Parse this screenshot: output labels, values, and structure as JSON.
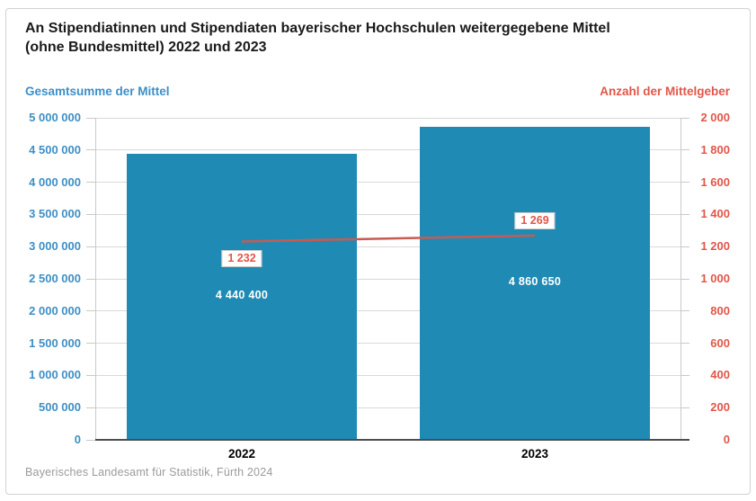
{
  "header": {
    "title_line1": "An Stipendiatinnen und Stipendiaten bayerischer Hochschulen weitergegebene Mittel",
    "title_line2": "(ohne Bundesmittel) 2022 und 2023"
  },
  "axes": {
    "left_label": "Gesamtsumme der Mittel",
    "right_label": "Anzahl der Mittelgeber"
  },
  "footer": {
    "source": "Bayerisches Landesamt für Statistik, Fürth 2024"
  },
  "colors": {
    "bar": "#1f8bb4",
    "line": "#c75b52",
    "left_axis_text": "#3d8fc6",
    "right_axis_text": "#e25649",
    "grid": "#d9d9d9",
    "axis_line": "#c9c9c9",
    "baseline": "#4d4d4d",
    "bar_label": "#ffffff",
    "title": "#1a1a1a",
    "xlabel": "#000000",
    "source": "#9b9b9b"
  },
  "chart_data": {
    "type": "bar",
    "title": "An Stipendiatinnen und Stipendiaten bayerischer Hochschulen weitergegebene Mittel (ohne Bundesmittel) 2022 und 2023",
    "categories": [
      "2022",
      "2023"
    ],
    "series": [
      {
        "name": "Gesamtsumme der Mittel",
        "type": "bar",
        "axis": "left",
        "values": [
          4440400,
          4860650
        ],
        "labels": [
          "4 440 400",
          "4 860 650"
        ]
      },
      {
        "name": "Anzahl der Mittelgeber",
        "type": "line",
        "axis": "right",
        "values": [
          1232,
          1269
        ],
        "labels": [
          "1 232",
          "1 269"
        ],
        "label_position": [
          "below",
          "above"
        ]
      }
    ],
    "left_axis": {
      "min": 0,
      "max": 5000000,
      "step": 500000,
      "values": [
        0,
        500000,
        1000000,
        1500000,
        2000000,
        2500000,
        3000000,
        3500000,
        4000000,
        4500000,
        5000000
      ],
      "labels": [
        "0",
        "500 000",
        "1 000 000",
        "1 500 000",
        "2 000 000",
        "2 500 000",
        "3 000 000",
        "3 500 000",
        "4 000 000",
        "4 500 000",
        "5 000 000"
      ]
    },
    "right_axis": {
      "min": 0,
      "max": 2000,
      "step": 200,
      "values": [
        0,
        200,
        400,
        600,
        800,
        1000,
        1200,
        1400,
        1600,
        1800,
        2000
      ],
      "labels": [
        "0",
        "200",
        "400",
        "600",
        "800",
        "1 000",
        "1 200",
        "1 400",
        "1 600",
        "1 800",
        "2 000"
      ]
    },
    "grid": true,
    "legend_position": "top",
    "xlabel": "",
    "ylabel": "Gesamtsumme der Mittel",
    "y2label": "Anzahl der Mittelgeber"
  }
}
